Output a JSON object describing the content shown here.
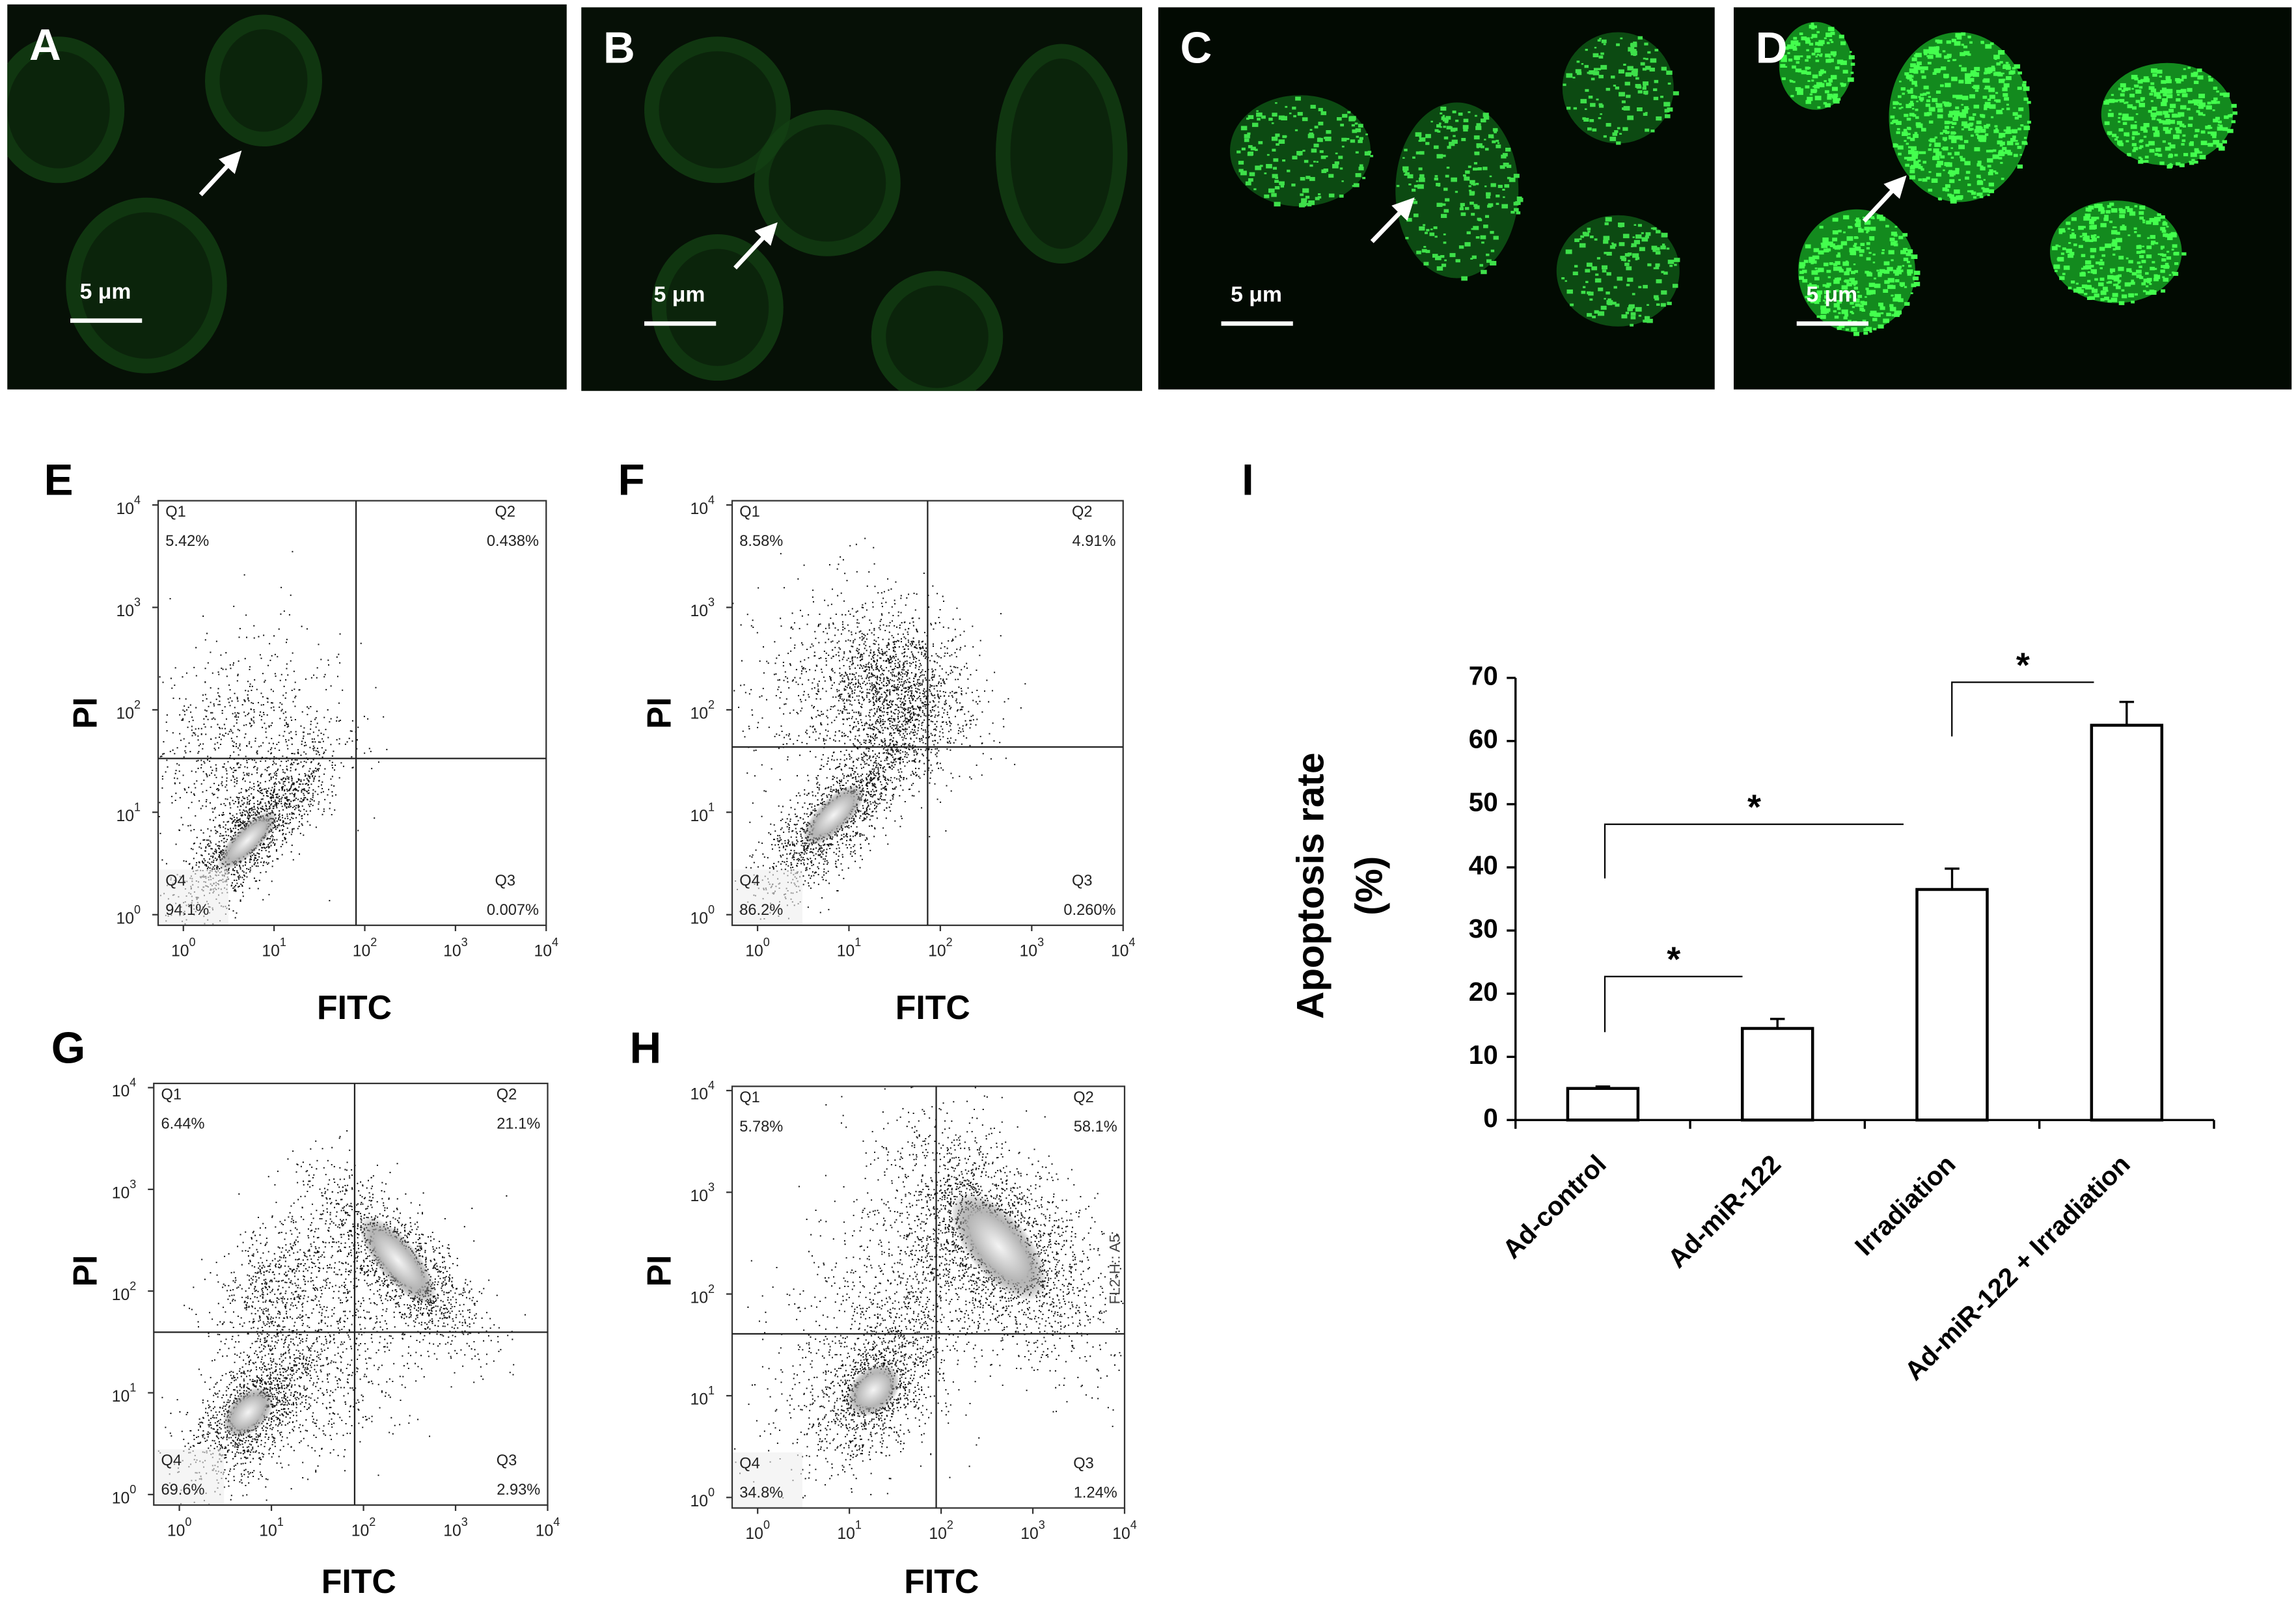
{
  "images": [
    {
      "label": "A",
      "scale_bar": "5 μm"
    },
    {
      "label": "B",
      "scale_bar": "5 μm"
    },
    {
      "label": "C",
      "scale_bar": "5 μm"
    },
    {
      "label": "D",
      "scale_bar": "5 μm"
    }
  ],
  "flow_tick_base": "10",
  "flow_tick_exponents": [
    "0",
    "1",
    "2",
    "3",
    "4"
  ],
  "flow_panels": [
    {
      "label": "E",
      "x_label": "FITC",
      "y_label": "PI",
      "quadrants": [
        {
          "name": "Q1",
          "percent": "5.42%"
        },
        {
          "name": "Q2",
          "percent": "0.438%"
        },
        {
          "name": "Q3",
          "percent": "0.007%"
        },
        {
          "name": "Q4",
          "percent": "94.1%"
        }
      ]
    },
    {
      "label": "F",
      "x_label": "FITC",
      "y_label": "PI",
      "quadrants": [
        {
          "name": "Q1",
          "percent": "8.58%"
        },
        {
          "name": "Q2",
          "percent": "4.91%"
        },
        {
          "name": "Q3",
          "percent": "0.260%"
        },
        {
          "name": "Q4",
          "percent": "86.2%"
        }
      ]
    },
    {
      "label": "G",
      "x_label": "FITC",
      "y_label": "PI",
      "quadrants": [
        {
          "name": "Q1",
          "percent": "6.44%"
        },
        {
          "name": "Q2",
          "percent": "21.1%"
        },
        {
          "name": "Q3",
          "percent": "2.93%"
        },
        {
          "name": "Q4",
          "percent": "69.6%"
        }
      ]
    },
    {
      "label": "H",
      "x_label": "FITC",
      "y_label": "PI",
      "extra_label": "FL2-H:: A5",
      "quadrants": [
        {
          "name": "Q1",
          "percent": "5.78%"
        },
        {
          "name": "Q2",
          "percent": "58.1%"
        },
        {
          "name": "Q3",
          "percent": "1.24%"
        },
        {
          "name": "Q4",
          "percent": "34.8%"
        }
      ]
    }
  ],
  "chart_data": {
    "type": "bar",
    "panel_label": "I",
    "y_label": "Apoptosis rate",
    "y_label_unit": "(%)",
    "categories": [
      "Ad-control",
      "Ad-miR-122",
      "Irradiation",
      "Ad-miR-122 + Irradiation"
    ],
    "values": [
      5,
      14.5,
      36.5,
      62.5
    ],
    "errors": [
      0.3,
      1.5,
      3.3,
      3.7
    ],
    "color": "#ffffff",
    "ylim": [
      0,
      70
    ],
    "yticks": [
      0,
      10,
      20,
      30,
      40,
      50,
      60,
      70
    ],
    "annotations": [
      "*",
      "*",
      "*"
    ]
  }
}
